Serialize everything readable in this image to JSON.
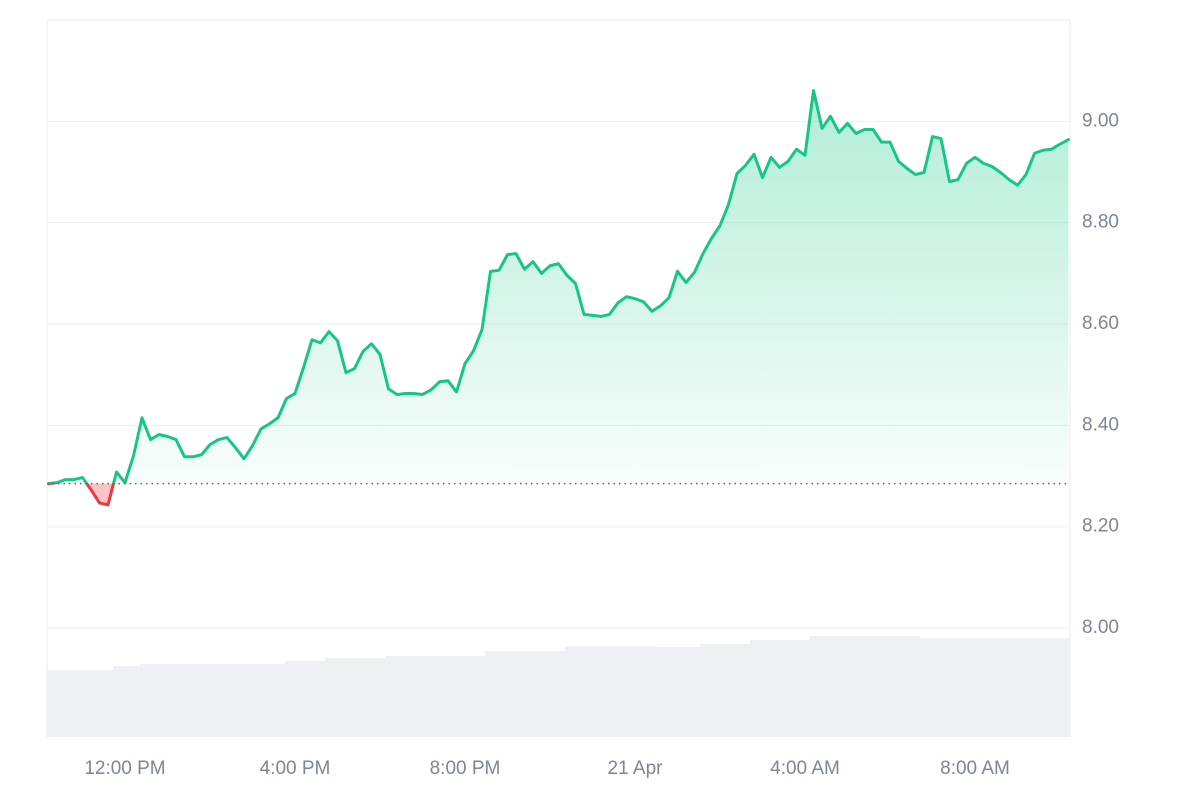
{
  "chart_data": {
    "type": "line",
    "x": [
      10.2,
      10.4,
      10.6,
      10.8,
      11.0,
      11.2,
      11.4,
      11.6,
      11.8,
      12.0,
      12.2,
      12.4,
      12.6,
      12.8,
      13.0,
      13.2,
      13.4,
      13.6,
      13.8,
      14.0,
      14.2,
      14.4,
      14.6,
      14.8,
      15.0,
      15.2,
      15.4,
      15.6,
      15.8,
      16.0,
      16.2,
      16.4,
      16.6,
      16.8,
      17.0,
      17.2,
      17.4,
      17.6,
      17.8,
      18.0,
      18.2,
      18.4,
      18.6,
      18.8,
      19.0,
      19.2,
      19.4,
      19.6,
      19.8,
      20.0,
      20.2,
      20.4,
      20.6,
      20.8,
      21.0,
      21.2,
      21.4,
      21.6,
      21.8,
      22.0,
      22.2,
      22.4,
      22.6,
      22.8,
      23.0,
      23.2,
      23.4,
      23.6,
      23.8,
      24.0,
      24.2,
      24.4,
      24.6,
      24.8,
      25.0,
      25.2,
      25.4,
      25.6,
      25.8,
      26.0,
      26.2,
      26.4,
      26.6,
      26.8,
      27.0,
      27.2,
      27.4,
      27.6,
      27.8,
      28.0,
      28.2,
      28.4,
      28.6,
      28.8,
      29.0,
      29.2,
      29.4,
      29.6,
      29.8,
      30.0,
      30.2,
      30.4,
      30.6,
      30.8,
      31.0,
      31.2,
      31.4,
      31.6,
      31.8,
      32.0,
      32.2,
      32.4,
      32.6,
      32.8,
      33.0,
      33.2,
      33.4,
      33.6,
      33.8,
      34.0,
      34.2
    ],
    "series": [
      {
        "color": "#16c784",
        "down_color": "#ea3943",
        "values": [
          8.285,
          8.287,
          8.293,
          8.293,
          8.297,
          8.273,
          8.247,
          8.243,
          8.308,
          8.287,
          8.34,
          8.415,
          8.372,
          8.382,
          8.378,
          8.372,
          8.338,
          8.338,
          8.342,
          8.362,
          8.372,
          8.376,
          8.356,
          8.334,
          8.36,
          8.393,
          8.403,
          8.415,
          8.453,
          8.463,
          8.514,
          8.569,
          8.563,
          8.585,
          8.567,
          8.504,
          8.512,
          8.546,
          8.561,
          8.54,
          8.472,
          8.461,
          8.463,
          8.463,
          8.461,
          8.47,
          8.486,
          8.488,
          8.466,
          8.522,
          8.547,
          8.589,
          8.704,
          8.706,
          8.737,
          8.739,
          8.708,
          8.723,
          8.7,
          8.715,
          8.719,
          8.696,
          8.68,
          8.619,
          8.617,
          8.615,
          8.619,
          8.642,
          8.654,
          8.65,
          8.644,
          8.625,
          8.636,
          8.652,
          8.704,
          8.682,
          8.702,
          8.739,
          8.769,
          8.794,
          8.836,
          8.897,
          8.913,
          8.935,
          8.889,
          8.929,
          8.909,
          8.921,
          8.945,
          8.933,
          9.061,
          8.986,
          9.01,
          8.978,
          8.996,
          8.976,
          8.984,
          8.984,
          8.959,
          8.959,
          8.921,
          8.907,
          8.895,
          8.899,
          8.97,
          8.966,
          8.881,
          8.885,
          8.917,
          8.929,
          8.917,
          8.911,
          8.899,
          8.885,
          8.874,
          8.895,
          8.937,
          8.943,
          8.945,
          8.955,
          8.964
        ]
      }
    ],
    "baseline": 8.285,
    "xlim": [
      10.165,
      34.235
    ],
    "xticks": [
      {
        "value": 12,
        "label": "12:00 PM"
      },
      {
        "value": 16,
        "label": "4:00 PM"
      },
      {
        "value": 20,
        "label": "8:00 PM"
      },
      {
        "value": 24,
        "label": "21 Apr"
      },
      {
        "value": 28,
        "label": "4:00 AM"
      },
      {
        "value": 32,
        "label": "8:00 AM"
      }
    ],
    "ylim": [
      7.785,
      9.2
    ],
    "yticks": [
      {
        "value": 8,
        "label": "8.00"
      },
      {
        "value": 8.2,
        "label": "8.20"
      },
      {
        "value": 8.4,
        "label": "8.40"
      },
      {
        "value": 8.6,
        "label": "8.60"
      },
      {
        "value": 8.8,
        "label": "8.80"
      },
      {
        "value": 9,
        "label": "9.00"
      }
    ],
    "grid": true
  }
}
